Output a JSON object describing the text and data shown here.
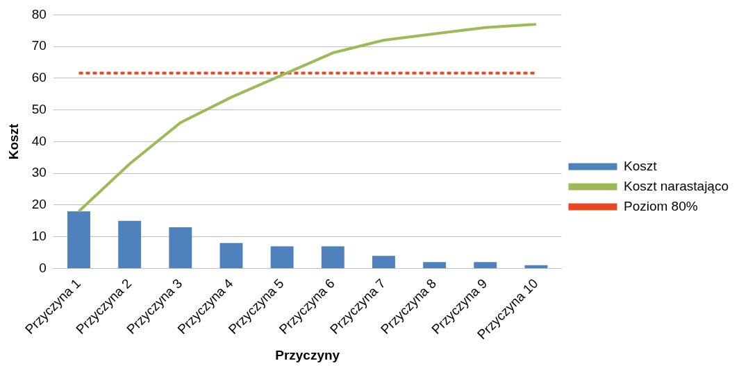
{
  "chart_data": {
    "type": "bar",
    "xlabel": "Przyczyny",
    "ylabel": "Koszt",
    "categories": [
      "Przyczyna 1",
      "Przyczyna 2",
      "Przyczyna 3",
      "Przyczyna 4",
      "Przyczyna 5",
      "Przyczyna 6",
      "Przyczyna 7",
      "Przyczyna 8",
      "Przyczyna 9",
      "Przyczyna 10"
    ],
    "series": [
      {
        "name": "Koszt",
        "color": "#4f81bd",
        "values": [
          18,
          15,
          13,
          8,
          7,
          7,
          4,
          2,
          2,
          1
        ]
      },
      {
        "name": "Koszt narastająco",
        "type": "line",
        "color": "#9bbb59",
        "values": [
          18,
          33,
          46,
          54,
          61,
          68,
          72,
          74,
          76,
          77
        ]
      },
      {
        "name": "Poziom 80%",
        "type": "line",
        "line_style": "dashed",
        "color": "#e8461e",
        "values": [
          61.6,
          61.6,
          61.6,
          61.6,
          61.6,
          61.6,
          61.6,
          61.6,
          61.6,
          61.6
        ]
      }
    ],
    "ylim": [
      0,
      80
    ],
    "yticks": [
      0,
      10,
      20,
      30,
      40,
      50,
      60,
      70,
      80
    ],
    "grid": "y",
    "legend": "right"
  }
}
